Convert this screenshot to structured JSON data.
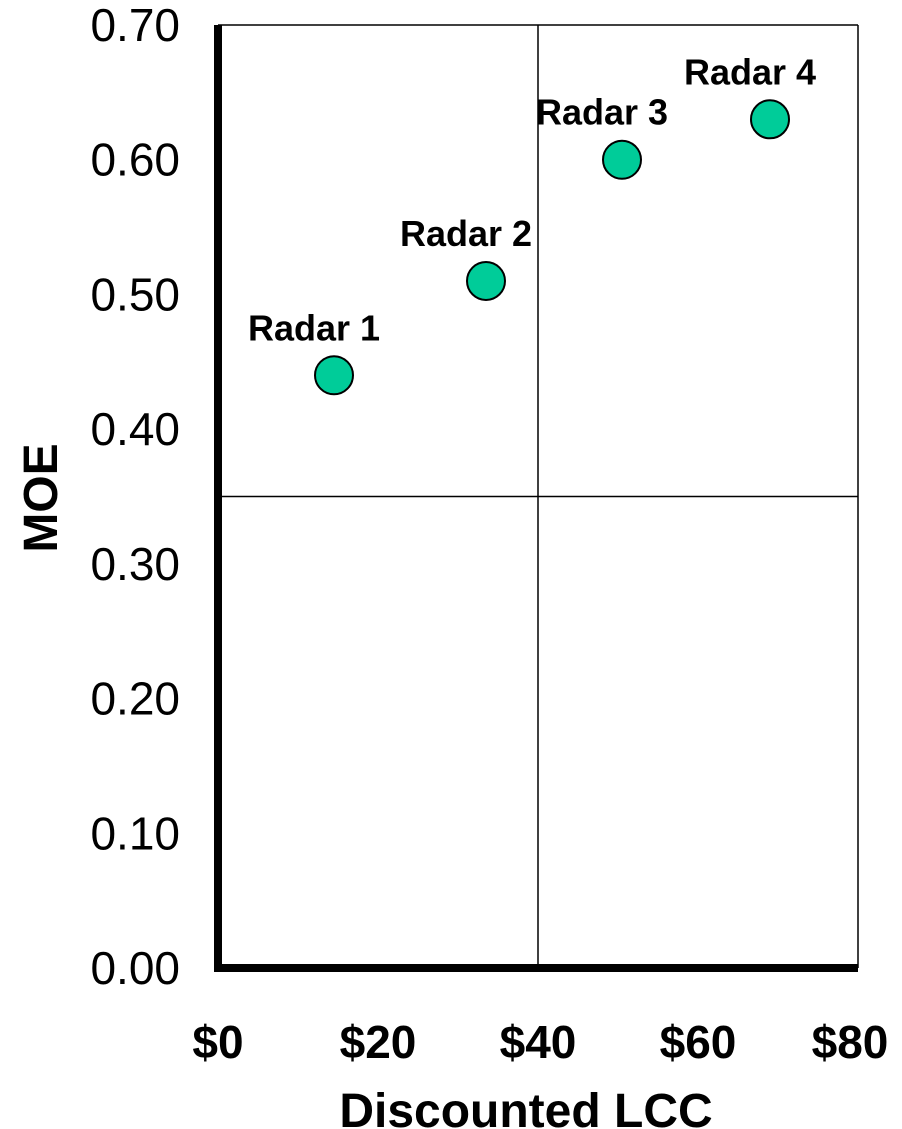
{
  "chart_data": {
    "type": "scatter",
    "title": "",
    "xlabel": "Discounted LCC",
    "ylabel": "MOE",
    "xlim": [
      0,
      80
    ],
    "ylim": [
      0,
      0.7
    ],
    "x_ticks": [
      "$0",
      "$20",
      "$40",
      "$60",
      "$80"
    ],
    "y_ticks": [
      "0.00",
      "0.10",
      "0.20",
      "0.30",
      "0.40",
      "0.50",
      "0.60",
      "0.70"
    ],
    "points": [
      {
        "label": "Radar 1",
        "x": 14.5,
        "y": 0.44
      },
      {
        "label": "Radar 2",
        "x": 33.5,
        "y": 0.51
      },
      {
        "label": "Radar 3",
        "x": 50.5,
        "y": 0.6
      },
      {
        "label": "Radar 4",
        "x": 69,
        "y": 0.63
      }
    ],
    "reference_lines": {
      "x": 40,
      "y": 0.35
    },
    "grid": false,
    "legend": "none",
    "marker_color": "#00cc99"
  }
}
